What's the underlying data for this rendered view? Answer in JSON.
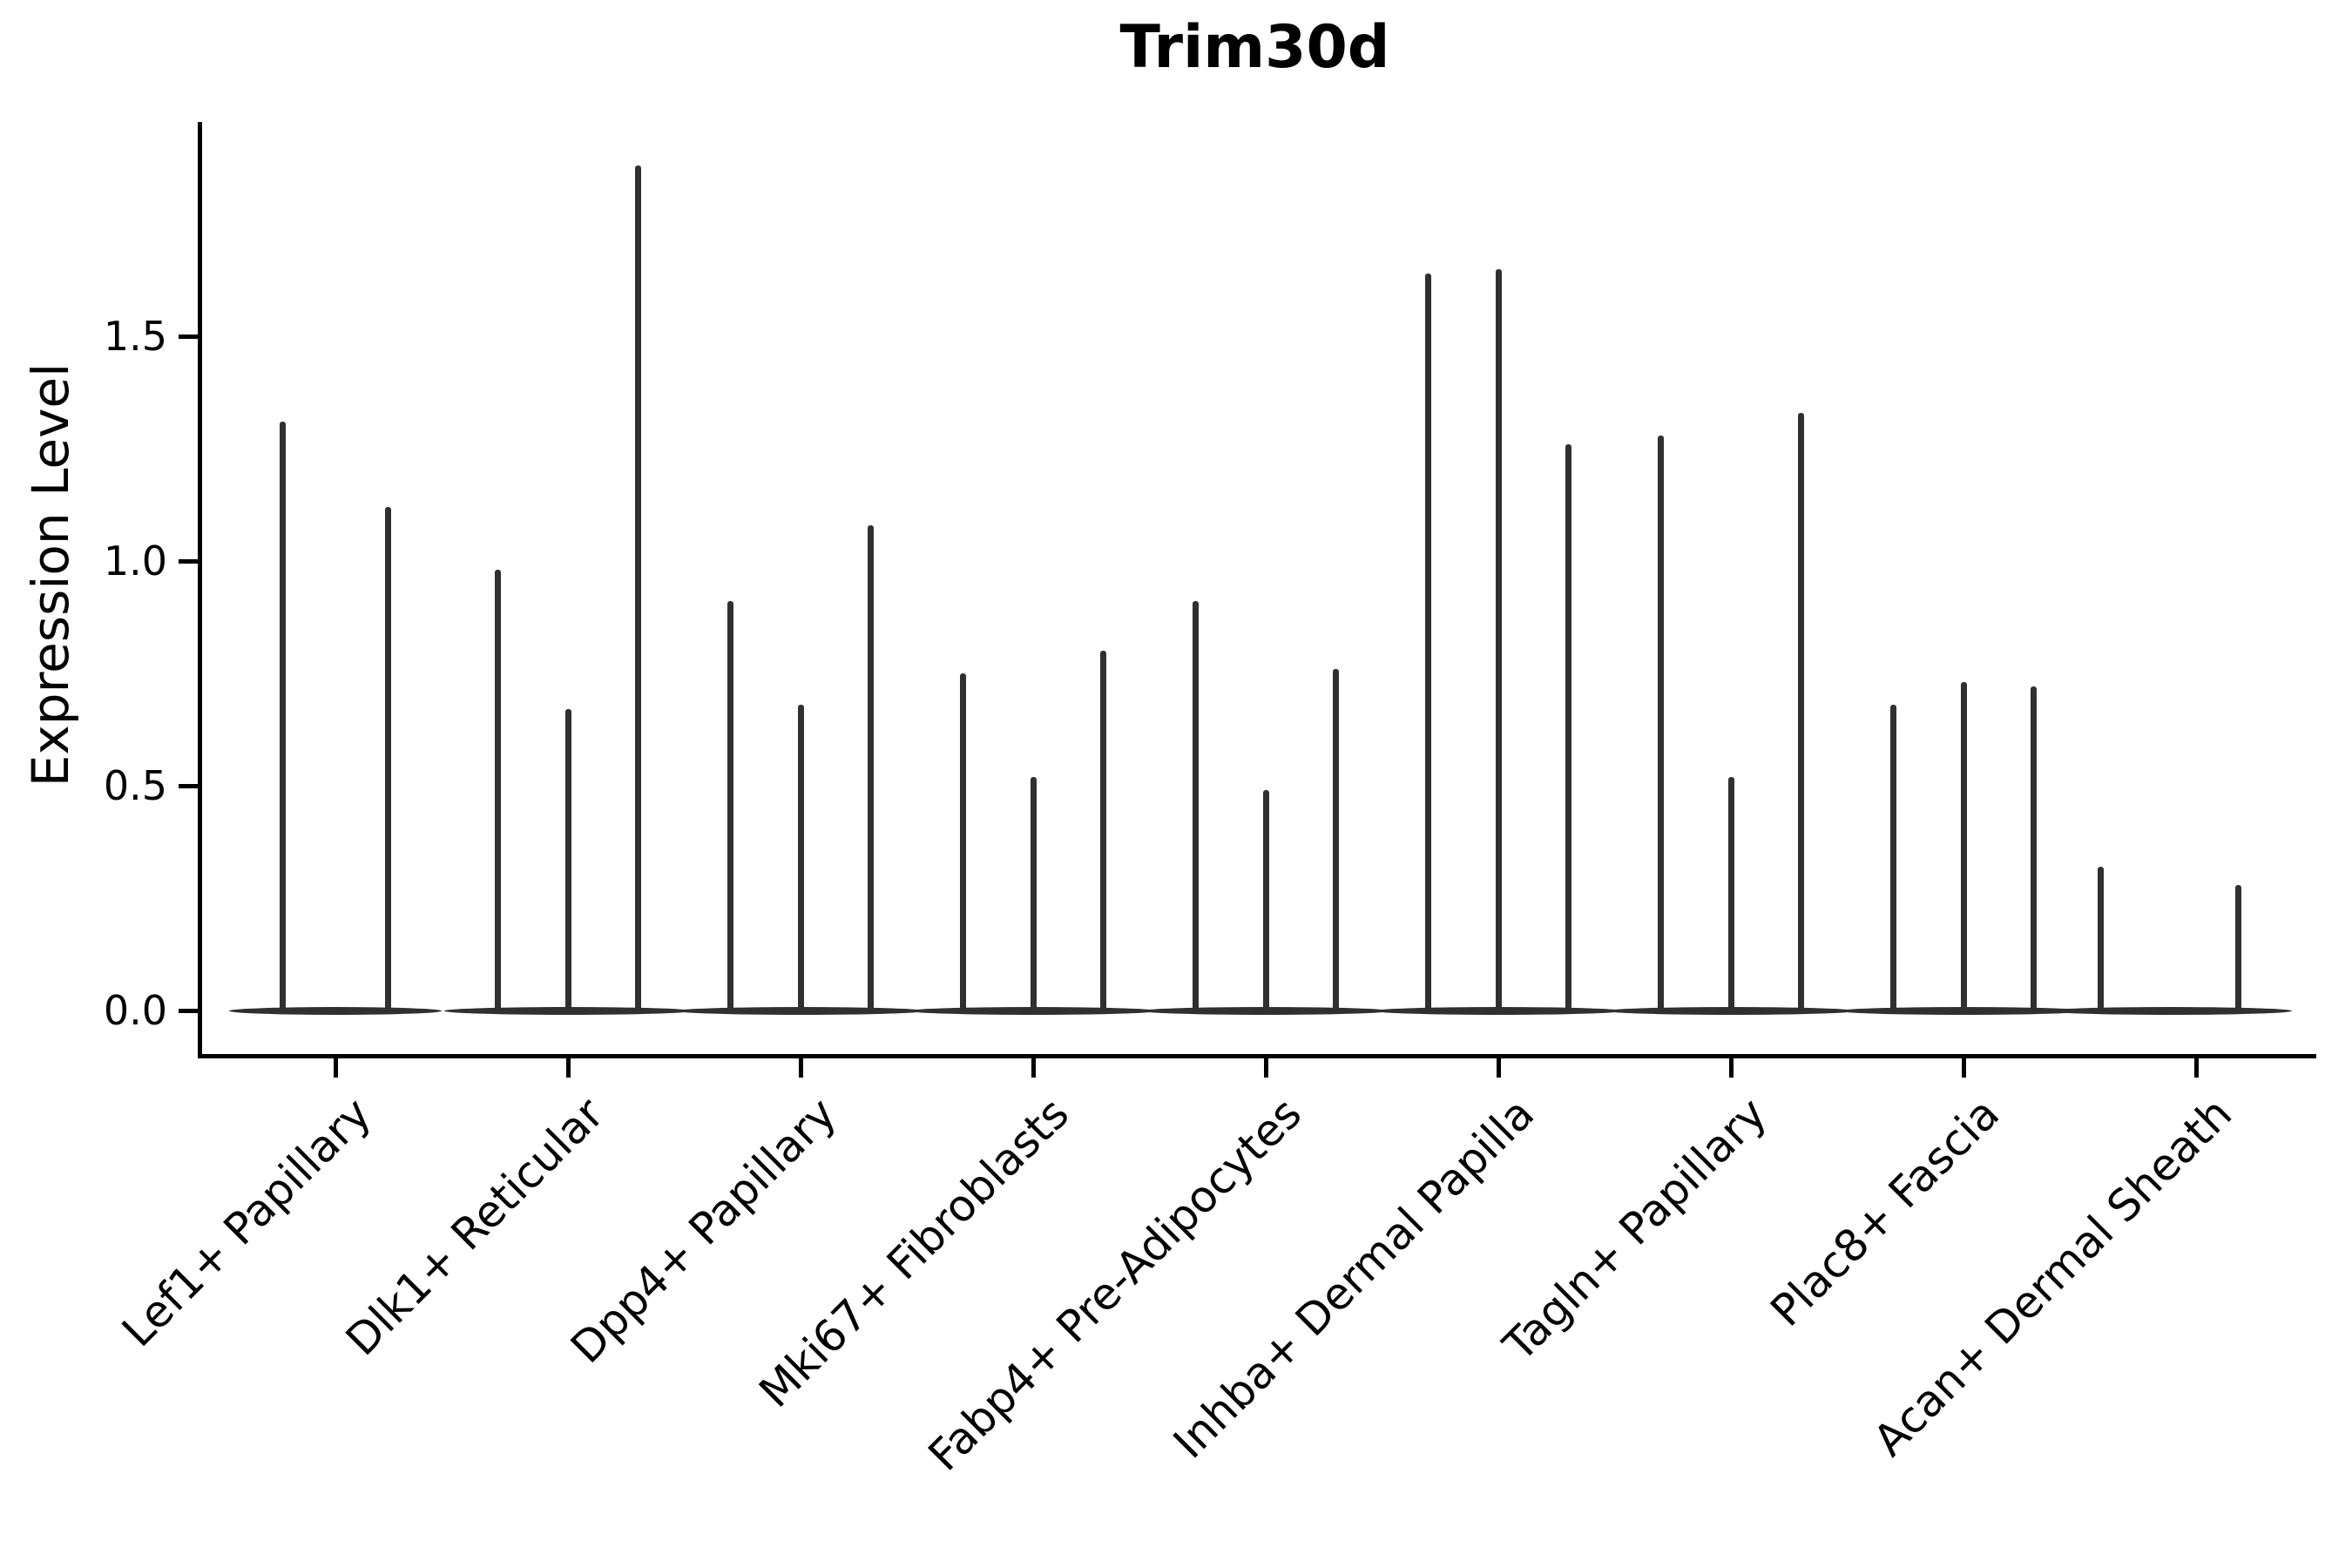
{
  "chart_data": {
    "type": "violin",
    "title": "Trim30d",
    "xlabel": "",
    "ylabel": "Expression Level",
    "ylim": [
      -0.1,
      1.98
    ],
    "grid": false,
    "legend": "none",
    "x_tick_rotation": 45,
    "line_color": "#303030",
    "axis_color": "#000000",
    "y_ticks": [
      {
        "value": 0.0,
        "label": "0.0"
      },
      {
        "value": 0.5,
        "label": "0.5"
      },
      {
        "value": 1.0,
        "label": "1.0"
      },
      {
        "value": 1.5,
        "label": "1.5"
      }
    ],
    "categories": [
      "Lef1+ Papillary",
      "Dlk1+ Reticular",
      "Dpp4+ Papillary",
      "Mki67+ Fibroblasts",
      "Fabp4+ Pre-Adipocytes",
      "Inhba+ Dermal Papilla",
      "Tagln+ Papillary",
      "Plac8+ Fascia",
      "Acan+ Dermal Sheath"
    ],
    "groups": [
      {
        "category": "Lef1+ Papillary",
        "violins": [
          {
            "offset": -0.225,
            "max": 1.31
          },
          {
            "offset": 0.225,
            "max": 1.12
          }
        ]
      },
      {
        "category": "Dlk1+ Reticular",
        "violins": [
          {
            "offset": -0.3,
            "max": 0.98
          },
          {
            "offset": 0.0,
            "max": 0.67
          },
          {
            "offset": 0.3,
            "max": 1.88
          }
        ]
      },
      {
        "category": "Dpp4+ Papillary",
        "violins": [
          {
            "offset": -0.3,
            "max": 0.91
          },
          {
            "offset": 0.0,
            "max": 0.68
          },
          {
            "offset": 0.3,
            "max": 1.08
          }
        ]
      },
      {
        "category": "Mki67+ Fibroblasts",
        "violins": [
          {
            "offset": -0.3,
            "max": 0.75
          },
          {
            "offset": 0.0,
            "max": 0.52
          },
          {
            "offset": 0.3,
            "max": 0.8
          }
        ]
      },
      {
        "category": "Fabp4+ Pre-Adipocytes",
        "violins": [
          {
            "offset": -0.3,
            "max": 0.91
          },
          {
            "offset": 0.0,
            "max": 0.49
          },
          {
            "offset": 0.3,
            "max": 0.76
          }
        ]
      },
      {
        "category": "Inhba+ Dermal Papilla",
        "violins": [
          {
            "offset": -0.3,
            "max": 1.64
          },
          {
            "offset": 0.0,
            "max": 1.65
          },
          {
            "offset": 0.3,
            "max": 1.26
          }
        ]
      },
      {
        "category": "Tagln+ Papillary",
        "violins": [
          {
            "offset": -0.3,
            "max": 1.28
          },
          {
            "offset": 0.0,
            "max": 0.52
          },
          {
            "offset": 0.3,
            "max": 1.33
          }
        ]
      },
      {
        "category": "Plac8+ Fascia",
        "violins": [
          {
            "offset": -0.3,
            "max": 0.68
          },
          {
            "offset": 0.0,
            "max": 0.73
          },
          {
            "offset": 0.3,
            "max": 0.72
          }
        ]
      },
      {
        "category": "Acan+ Dermal Sheath",
        "violins": [
          {
            "offset": -0.41,
            "max": 0.32
          },
          {
            "offset": 0.18,
            "max": 0.28
          }
        ]
      }
    ],
    "base_halfwidth_units": 0.232
  }
}
